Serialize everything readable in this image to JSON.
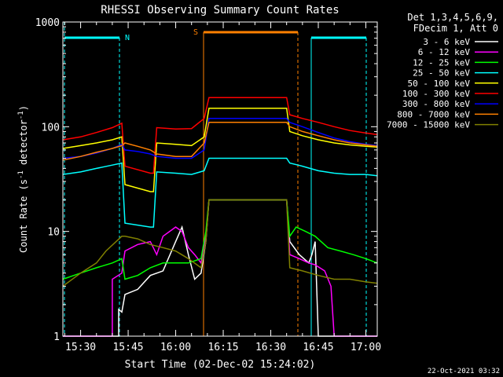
{
  "chart_data": {
    "type": "line",
    "title": "RHESSI Observing Summary Count Rates",
    "xlabel": "Start Time (02-Dec-02 15:24:02)",
    "ylabel_main": "Count Rate (s",
    "ylabel_sup1": "-1",
    "ylabel_mid": " detector",
    "ylabel_sup2": "-1",
    "ylabel_end": ")",
    "yscale": "log",
    "ylim": [
      1,
      1000
    ],
    "xlim_minutes": [
      -5.6,
      93.6
    ],
    "xticks": [
      {
        "label": "15:30",
        "minutes": 0
      },
      {
        "label": "15:45",
        "minutes": 15
      },
      {
        "label": "16:00",
        "minutes": 30
      },
      {
        "label": "16:15",
        "minutes": 45
      },
      {
        "label": "16:30",
        "minutes": 60
      },
      {
        "label": "16:45",
        "minutes": 75
      },
      {
        "label": "17:00",
        "minutes": 90
      }
    ],
    "yticks": [
      {
        "label": "1",
        "value": 1
      },
      {
        "label": "10",
        "value": 10
      },
      {
        "label": "100",
        "value": 100
      },
      {
        "label": "1000",
        "value": 1000
      }
    ],
    "legend_header": [
      "Det 1,3,4,5,6,9,",
      "FDecim 1, Att 0"
    ],
    "footer_date": "22-Oct-2021 03:32",
    "series": [
      {
        "name": "3 - 6 keV",
        "color": "#ffffff",
        "points": [
          [
            -5.6,
            1
          ],
          [
            12,
            1
          ],
          [
            12,
            1.8
          ],
          [
            13,
            1.7
          ],
          [
            14,
            2.5
          ],
          [
            18,
            2.8
          ],
          [
            22,
            3.8
          ],
          [
            26,
            4.2
          ],
          [
            30,
            8
          ],
          [
            32,
            11
          ],
          [
            34,
            6
          ],
          [
            36,
            3.5
          ],
          [
            38,
            4
          ],
          [
            39.5,
            8
          ],
          [
            40.5,
            20
          ],
          [
            41,
            20
          ],
          [
            65,
            20
          ],
          [
            66,
            8
          ],
          [
            69,
            6
          ],
          [
            72,
            5
          ],
          [
            73,
            6
          ],
          [
            74,
            8
          ],
          [
            75,
            1
          ],
          [
            93.6,
            1
          ]
        ]
      },
      {
        "name": "6 - 12 keV",
        "color": "#ff00ff",
        "points": [
          [
            -5.6,
            1
          ],
          [
            10,
            1
          ],
          [
            10,
            3.5
          ],
          [
            13,
            4
          ],
          [
            14,
            6.5
          ],
          [
            18,
            7.5
          ],
          [
            22,
            8
          ],
          [
            24,
            6
          ],
          [
            26,
            9
          ],
          [
            30,
            11
          ],
          [
            32,
            10
          ],
          [
            34,
            7
          ],
          [
            36,
            6
          ],
          [
            38,
            5
          ],
          [
            39.5,
            9
          ],
          [
            40.5,
            20
          ],
          [
            41,
            20
          ],
          [
            65,
            20
          ],
          [
            66,
            6
          ],
          [
            69,
            5.5
          ],
          [
            72,
            5
          ],
          [
            74,
            4.8
          ],
          [
            77,
            4.2
          ],
          [
            79,
            3
          ],
          [
            80,
            1
          ],
          [
            93.6,
            1
          ]
        ]
      },
      {
        "name": "12 - 25 keV",
        "color": "#00ff00",
        "points": [
          [
            -5.6,
            3.5
          ],
          [
            0,
            4
          ],
          [
            5,
            4.5
          ],
          [
            10,
            5
          ],
          [
            13,
            5.5
          ],
          [
            14,
            3.5
          ],
          [
            18,
            3.8
          ],
          [
            22,
            4.5
          ],
          [
            26,
            5
          ],
          [
            30,
            5
          ],
          [
            34,
            5
          ],
          [
            38,
            5.5
          ],
          [
            39.5,
            10
          ],
          [
            40.5,
            20
          ],
          [
            41,
            20
          ],
          [
            65,
            20
          ],
          [
            66,
            9
          ],
          [
            68,
            11
          ],
          [
            71,
            10
          ],
          [
            74,
            9
          ],
          [
            78,
            7
          ],
          [
            82,
            6.5
          ],
          [
            86,
            6
          ],
          [
            90,
            5.5
          ],
          [
            93.6,
            5
          ]
        ]
      },
      {
        "name": "25 - 50 keV",
        "color": "#00ffff",
        "points": [
          [
            -5.6,
            35
          ],
          [
            0,
            37
          ],
          [
            5,
            40
          ],
          [
            10,
            43
          ],
          [
            13,
            45
          ],
          [
            14,
            12
          ],
          [
            22,
            11
          ],
          [
            23,
            11
          ],
          [
            24,
            37
          ],
          [
            30,
            36
          ],
          [
            35,
            35
          ],
          [
            39,
            38
          ],
          [
            40.5,
            50
          ],
          [
            41,
            50
          ],
          [
            65,
            50
          ],
          [
            66,
            45
          ],
          [
            70,
            42
          ],
          [
            75,
            38
          ],
          [
            80,
            36
          ],
          [
            85,
            35
          ],
          [
            90,
            35
          ],
          [
            93.6,
            34
          ]
        ]
      },
      {
        "name": "50 - 100 keV",
        "color": "#ffff00",
        "points": [
          [
            -5.6,
            62
          ],
          [
            0,
            66
          ],
          [
            5,
            70
          ],
          [
            10,
            75
          ],
          [
            13,
            80
          ],
          [
            14,
            28
          ],
          [
            22,
            24
          ],
          [
            23,
            24
          ],
          [
            24,
            70
          ],
          [
            30,
            68
          ],
          [
            35,
            66
          ],
          [
            39,
            80
          ],
          [
            40.5,
            150
          ],
          [
            41,
            150
          ],
          [
            65,
            150
          ],
          [
            66,
            90
          ],
          [
            70,
            82
          ],
          [
            75,
            75
          ],
          [
            80,
            70
          ],
          [
            85,
            67
          ],
          [
            90,
            65
          ],
          [
            93.6,
            64
          ]
        ]
      },
      {
        "name": "100 - 300 keV",
        "color": "#ff0000",
        "points": [
          [
            -5.6,
            75
          ],
          [
            0,
            80
          ],
          [
            5,
            88
          ],
          [
            10,
            98
          ],
          [
            13,
            108
          ],
          [
            14,
            42
          ],
          [
            22,
            36
          ],
          [
            23,
            36
          ],
          [
            24,
            98
          ],
          [
            30,
            95
          ],
          [
            35,
            96
          ],
          [
            39,
            120
          ],
          [
            40.5,
            190
          ],
          [
            41,
            190
          ],
          [
            65,
            190
          ],
          [
            66,
            130
          ],
          [
            70,
            120
          ],
          [
            75,
            110
          ],
          [
            80,
            100
          ],
          [
            85,
            92
          ],
          [
            90,
            87
          ],
          [
            93.6,
            84
          ]
        ]
      },
      {
        "name": "300 - 800 keV",
        "color": "#0000ff",
        "points": [
          [
            -5.6,
            50
          ],
          [
            0,
            52
          ],
          [
            5,
            56
          ],
          [
            10,
            62
          ],
          [
            13,
            68
          ],
          [
            14,
            60
          ],
          [
            18,
            58
          ],
          [
            22,
            55
          ],
          [
            24,
            52
          ],
          [
            30,
            50
          ],
          [
            35,
            50
          ],
          [
            39,
            60
          ],
          [
            40.5,
            120
          ],
          [
            41,
            120
          ],
          [
            65,
            120
          ],
          [
            66,
            110
          ],
          [
            70,
            100
          ],
          [
            75,
            88
          ],
          [
            80,
            78
          ],
          [
            85,
            72
          ],
          [
            90,
            68
          ],
          [
            93.6,
            66
          ]
        ]
      },
      {
        "name": "800 - 7000 keV",
        "color": "#ff8000",
        "points": [
          [
            -5.6,
            48
          ],
          [
            0,
            52
          ],
          [
            5,
            57
          ],
          [
            10,
            62
          ],
          [
            13,
            66
          ],
          [
            14,
            70
          ],
          [
            18,
            65
          ],
          [
            22,
            60
          ],
          [
            24,
            55
          ],
          [
            30,
            52
          ],
          [
            35,
            52
          ],
          [
            39,
            70
          ],
          [
            40.5,
            110
          ],
          [
            41,
            110
          ],
          [
            65,
            110
          ],
          [
            66,
            100
          ],
          [
            70,
            90
          ],
          [
            75,
            82
          ],
          [
            80,
            75
          ],
          [
            85,
            70
          ],
          [
            90,
            67
          ],
          [
            93.6,
            65
          ]
        ]
      },
      {
        "name": "7000 - 15000 keV",
        "color": "#808000",
        "points": [
          [
            -5.6,
            3
          ],
          [
            0,
            4
          ],
          [
            5,
            5
          ],
          [
            8,
            6.5
          ],
          [
            13,
            9
          ],
          [
            14,
            9
          ],
          [
            18,
            8.5
          ],
          [
            22,
            7.5
          ],
          [
            26,
            7
          ],
          [
            30,
            6.5
          ],
          [
            34,
            5.5
          ],
          [
            38,
            4.5
          ],
          [
            39.5,
            8
          ],
          [
            40.5,
            20
          ],
          [
            41,
            20
          ],
          [
            65,
            20
          ],
          [
            66,
            4.5
          ],
          [
            70,
            4.2
          ],
          [
            75,
            3.8
          ],
          [
            80,
            3.5
          ],
          [
            85,
            3.5
          ],
          [
            90,
            3.3
          ],
          [
            93.6,
            3.2
          ]
        ]
      }
    ],
    "annotations": [
      {
        "label": "N",
        "color": "#00ffff",
        "minutes": 12.5,
        "style": "dashed"
      },
      {
        "label": "S",
        "color": "#ff8000",
        "minutes": 40.8,
        "style": "solid"
      }
    ]
  }
}
